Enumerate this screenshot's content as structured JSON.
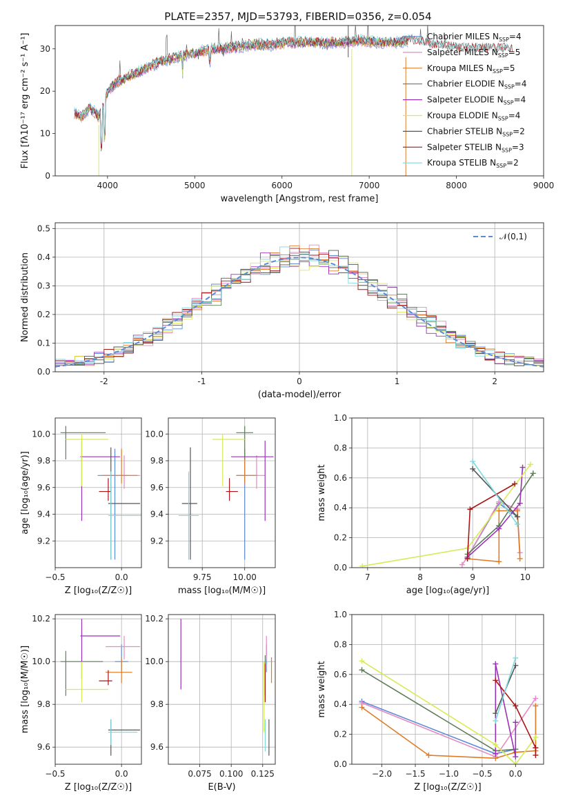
{
  "figure_title": "PLATE=2357, MJD=53793, FIBERID=0356, z=0.054",
  "models": [
    {
      "name": "Chabrier MILES",
      "nssp": "4",
      "color": "#5b8ad6"
    },
    {
      "name": "Salpeter MILES",
      "nssp": "5",
      "color": "#e58ac5"
    },
    {
      "name": "Kroupa MILES",
      "nssp": "5",
      "color": "#e07b24"
    },
    {
      "name": "Chabrier ELODIE",
      "nssp": "4",
      "color": "#5e7d5c"
    },
    {
      "name": "Salpeter ELODIE",
      "nssp": "4",
      "color": "#9b30b8"
    },
    {
      "name": "Kroupa ELODIE",
      "nssp": "4",
      "color": "#d8ea55"
    },
    {
      "name": "Chabrier STELIB",
      "nssp": "2",
      "color": "#555555"
    },
    {
      "name": "Salpeter STELIB",
      "nssp": "3",
      "color": "#aa1515"
    },
    {
      "name": "Kroupa STELIB",
      "nssp": "2",
      "color": "#7dd9e0"
    }
  ],
  "legend_nssp_prefix": "N",
  "legend_nssp_sub": "SSP",
  "legend_nssp_eq": "=",
  "chart_data": [
    {
      "id": "spectrum",
      "type": "line",
      "title": "PLATE=2357, MJD=53793, FIBERID=0356, z=0.054",
      "xlabel": "wavelength [Angstrom, rest frame]",
      "ylabel": "Flux [fλ10⁻¹⁷ erg cm⁻² s⁻¹ A⁻¹]",
      "xlim": [
        3400,
        9000
      ],
      "ylim": [
        0,
        35.5
      ],
      "xticks": [
        4000,
        5000,
        6000,
        7000,
        8000,
        9000
      ],
      "yticks": [
        0,
        10,
        20,
        30
      ],
      "continuum": [
        [
          3620,
          15
        ],
        [
          3700,
          14
        ],
        [
          3800,
          16
        ],
        [
          3900,
          14
        ],
        [
          3950,
          16
        ],
        [
          4000,
          20
        ],
        [
          4100,
          22
        ],
        [
          4200,
          23
        ],
        [
          4300,
          24
        ],
        [
          4400,
          25
        ],
        [
          4500,
          26
        ],
        [
          4600,
          27
        ],
        [
          4700,
          27.5
        ],
        [
          4800,
          28
        ],
        [
          4900,
          28.5
        ],
        [
          5000,
          29
        ],
        [
          5100,
          29.5
        ],
        [
          5200,
          30
        ],
        [
          5300,
          30
        ],
        [
          5500,
          30.5
        ],
        [
          5700,
          31
        ],
        [
          5900,
          31
        ],
        [
          6100,
          31.5
        ],
        [
          6300,
          31.5
        ],
        [
          6500,
          31.5
        ],
        [
          6700,
          31.5
        ],
        [
          6900,
          32
        ],
        [
          7100,
          31.5
        ],
        [
          7300,
          31.5
        ],
        [
          7500,
          32
        ],
        [
          7700,
          31
        ],
        [
          7900,
          30.5
        ],
        [
          8100,
          30
        ],
        [
          8300,
          30
        ],
        [
          8500,
          30
        ],
        [
          8650,
          30
        ]
      ],
      "legend": "top-right",
      "grid": false
    },
    {
      "id": "residuals",
      "type": "histogram",
      "xlabel": "(data-model)/error",
      "ylabel": "Normed distribution",
      "xlim": [
        -2.5,
        2.5
      ],
      "ylim": [
        0,
        0.52
      ],
      "xticks": [
        -2,
        -1,
        0,
        1,
        2
      ],
      "yticks": [
        0,
        0.1,
        0.2,
        0.3,
        0.4,
        0.5
      ],
      "curve_label": "𝒩(0,1)",
      "curve_color": "#5b8ad6",
      "legend": "top-right",
      "grid": true
    },
    {
      "id": "age_vs_Z",
      "type": "errorbar",
      "xlabel": "Z [log₁₀(Z/Z☉)]",
      "ylabel": "age  [log₁₀(age/yr)]",
      "xlim": [
        -0.5,
        0.15
      ],
      "ylim": [
        9.0,
        10.12
      ],
      "xticks": [
        -0.5,
        0.0
      ],
      "xticklabels": [
        "−0.5",
        "0.0"
      ],
      "yticks": [
        9.2,
        9.4,
        9.6,
        9.8,
        10.0
      ],
      "points": [
        {
          "x": -0.05,
          "y": 9.69,
          "xe": [
            0.13,
            0.1
          ],
          "ye": [
            0.63,
            0.2
          ],
          "c": "#5b8ad6"
        },
        {
          "x": 0.02,
          "y": 9.69,
          "xe": [
            0.15,
            0.12
          ],
          "ye": [
            0.1,
            0.15
          ],
          "c": "#e58ac5"
        },
        {
          "x": 0.0,
          "y": 9.69,
          "xe": [
            0.15,
            0.12
          ],
          "ye": [
            0.06,
            0.2
          ],
          "c": "#e07b24"
        },
        {
          "x": -0.42,
          "y": 10.01,
          "xe": [
            0.04,
            0.3
          ],
          "ye": [
            0.2,
            0.05
          ],
          "c": "#5e7d5c"
        },
        {
          "x": -0.3,
          "y": 9.83,
          "xe": [
            0.01,
            0.29
          ],
          "ye": [
            0.48,
            0.12
          ],
          "c": "#9b30b8"
        },
        {
          "x": -0.3,
          "y": 9.96,
          "xe": [
            0.12,
            0.2
          ],
          "ye": [
            0.35,
            0.04
          ],
          "c": "#d8ea55"
        },
        {
          "x": -0.08,
          "y": 9.48,
          "xe": [
            0.02,
            0.22
          ],
          "ye": [
            0.42,
            0.42
          ],
          "c": "#555555"
        },
        {
          "x": -0.1,
          "y": 9.57,
          "xe": [
            0.07,
            0.02
          ],
          "ye": [
            0.07,
            0.1
          ],
          "c": "#aa1515"
        },
        {
          "x": -0.08,
          "y": 9.39,
          "xe": [
            0.02,
            0.23
          ],
          "ye": [
            0.33,
            0.33
          ],
          "c": "#7dd9e0"
        }
      ],
      "grid": true
    },
    {
      "id": "age_vs_mass",
      "type": "errorbar",
      "xlabel": "mass [log₁₀(M/M☉)]",
      "xlim": [
        9.55,
        10.18
      ],
      "ylim": [
        9.0,
        10.12
      ],
      "xticks": [
        9.75,
        10.0
      ],
      "xticklabels": [
        "9.75",
        "10.00"
      ],
      "yticks": [
        9.2,
        9.4,
        9.6,
        9.8,
        10.0
      ],
      "points": [
        {
          "x": 10.0,
          "y": 9.69,
          "xe": [
            0.05,
            0.08
          ],
          "ye": [
            0.63,
            0.2
          ],
          "c": "#5b8ad6"
        },
        {
          "x": 10.07,
          "y": 9.69,
          "xe": [
            0.06,
            0.05
          ],
          "ye": [
            0.1,
            0.15
          ],
          "c": "#e58ac5"
        },
        {
          "x": 10.0,
          "y": 9.69,
          "xe": [
            0.05,
            0.07
          ],
          "ye": [
            0.06,
            0.2
          ],
          "c": "#e07b24"
        },
        {
          "x": 10.0,
          "y": 10.01,
          "xe": [
            0.05,
            0.05
          ],
          "ye": [
            0.2,
            0.05
          ],
          "c": "#5e7d5c"
        },
        {
          "x": 10.12,
          "y": 9.83,
          "xe": [
            0.2,
            0.05
          ],
          "ye": [
            0.48,
            0.12
          ],
          "c": "#9b30b8"
        },
        {
          "x": 9.87,
          "y": 9.96,
          "xe": [
            0.06,
            0.13
          ],
          "ye": [
            0.35,
            0.04
          ],
          "c": "#d8ea55"
        },
        {
          "x": 9.68,
          "y": 9.48,
          "xe": [
            0.05,
            0.04
          ],
          "ye": [
            0.42,
            0.42
          ],
          "c": "#555555"
        },
        {
          "x": 9.91,
          "y": 9.57,
          "xe": [
            0.02,
            0.05
          ],
          "ye": [
            0.07,
            0.1
          ],
          "c": "#aa1515"
        },
        {
          "x": 9.67,
          "y": 9.39,
          "xe": [
            0.06,
            0.06
          ],
          "ye": [
            0.33,
            0.33
          ],
          "c": "#7dd9e0"
        }
      ],
      "grid": true
    },
    {
      "id": "weight_vs_age",
      "type": "line",
      "xlabel": "age  [log₁₀(age/yr)]",
      "ylabel": "mass weight",
      "xlim": [
        6.7,
        10.35
      ],
      "ylim": [
        0,
        1
      ],
      "xticks": [
        7,
        8,
        9,
        10
      ],
      "yticks": [
        0,
        0.2,
        0.4,
        0.6,
        0.8,
        1.0
      ],
      "series": [
        {
          "c": "#5b8ad6",
          "x": [
            8.9,
            9.5,
            9.85
          ],
          "y": [
            0.07,
            0.43,
            0.34
          ]
        },
        {
          "c": "#e58ac5",
          "x": [
            8.8,
            8.9,
            9.5,
            9.85,
            9.9
          ],
          "y": [
            0.02,
            0.07,
            0.44,
            0.39,
            0.1
          ]
        },
        {
          "c": "#e07b24",
          "x": [
            8.9,
            9.5,
            9.5,
            9.85,
            9.9
          ],
          "y": [
            0.06,
            0.04,
            0.38,
            0.38,
            0.06
          ]
        },
        {
          "c": "#5e7d5c",
          "x": [
            8.9,
            9.5,
            10.15
          ],
          "y": [
            0.09,
            0.28,
            0.63
          ]
        },
        {
          "c": "#9b30b8",
          "x": [
            8.9,
            9.5,
            9.9,
            9.95
          ],
          "y": [
            0.07,
            0.26,
            0.43,
            0.67
          ]
        },
        {
          "c": "#d8ea55",
          "x": [
            6.9,
            8.9,
            10.1
          ],
          "y": [
            0.01,
            0.13,
            0.69
          ]
        },
        {
          "c": "#555555",
          "x": [
            9.0,
            9.85
          ],
          "y": [
            0.66,
            0.34
          ]
        },
        {
          "c": "#aa1515",
          "x": [
            8.9,
            8.95,
            9.8
          ],
          "y": [
            0.06,
            0.39,
            0.56
          ]
        },
        {
          "c": "#7dd9e0",
          "x": [
            9.0,
            9.85
          ],
          "y": [
            0.71,
            0.29
          ]
        }
      ],
      "grid": true
    },
    {
      "id": "mass_vs_Z",
      "type": "errorbar",
      "xlabel": "Z [log₁₀(Z/Z☉)]",
      "ylabel": "mass [log₁₀(M/M☉)]",
      "xlim": [
        -0.5,
        0.15
      ],
      "ylim": [
        9.52,
        10.22
      ],
      "xticks": [
        -0.5,
        0.0
      ],
      "xticklabels": [
        "−0.5",
        "0.0"
      ],
      "yticks": [
        9.6,
        9.8,
        10.0,
        10.2
      ],
      "points": [
        {
          "x": 0.0,
          "y": 10.0,
          "xe": [
            0.05,
            0.05
          ],
          "ye": [
            0.05,
            0.08
          ],
          "c": "#5b8ad6"
        },
        {
          "x": 0.02,
          "y": 10.07,
          "xe": [
            0.14,
            0.12
          ],
          "ye": [
            0.06,
            0.05
          ],
          "c": "#e58ac5"
        },
        {
          "x": 0.0,
          "y": 9.95,
          "xe": [
            0.12,
            0.08
          ],
          "ye": [
            0.05,
            0.07
          ],
          "c": "#e07b24"
        },
        {
          "x": -0.42,
          "y": 10.0,
          "xe": [
            0.04,
            0.28
          ],
          "ye": [
            0.16,
            0.05
          ],
          "c": "#5e7d5c"
        },
        {
          "x": -0.3,
          "y": 10.12,
          "xe": [
            0.01,
            0.29
          ],
          "ye": [
            0.2,
            0.08
          ],
          "c": "#9b30b8"
        },
        {
          "x": -0.3,
          "y": 9.87,
          "xe": [
            0.12,
            0.2
          ],
          "ye": [
            0.06,
            0.13
          ],
          "c": "#d8ea55"
        },
        {
          "x": -0.08,
          "y": 9.68,
          "xe": [
            0.02,
            0.22
          ],
          "ye": [
            0.12,
            0.05
          ],
          "c": "#555555"
        },
        {
          "x": -0.1,
          "y": 9.91,
          "xe": [
            0.07,
            0.03
          ],
          "ye": [
            0.02,
            0.05
          ],
          "c": "#aa1515"
        },
        {
          "x": -0.08,
          "y": 9.67,
          "xe": [
            0.02,
            0.2
          ],
          "ye": [
            0.06,
            0.06
          ],
          "c": "#7dd9e0"
        }
      ],
      "grid": true
    },
    {
      "id": "mass_vs_ebv",
      "type": "errorbar",
      "xlabel": "E(B-V)",
      "xlim": [
        0.05,
        0.135
      ],
      "ylim": [
        9.52,
        10.22
      ],
      "xticks": [
        0.075,
        0.1,
        0.125
      ],
      "xticklabels": [
        "0.075",
        "0.100",
        "0.125"
      ],
      "yticks": [
        9.6,
        9.8,
        10.0,
        10.2
      ],
      "points": [
        {
          "x": 0.128,
          "y": 10.0,
          "xe": [
            0,
            0
          ],
          "ye": [
            0.05,
            0.08
          ],
          "c": "#5b8ad6"
        },
        {
          "x": 0.128,
          "y": 10.07,
          "xe": [
            0,
            0
          ],
          "ye": [
            0.06,
            0.05
          ],
          "c": "#e58ac5"
        },
        {
          "x": 0.132,
          "y": 9.95,
          "xe": [
            0,
            0
          ],
          "ye": [
            0.05,
            0.07
          ],
          "c": "#e07b24"
        },
        {
          "x": 0.127,
          "y": 9.98,
          "xe": [
            0,
            0
          ],
          "ye": [
            0.14,
            0.05
          ],
          "c": "#5e7d5c"
        },
        {
          "x": 0.06,
          "y": 10.03,
          "xe": [
            0,
            0
          ],
          "ye": [
            0.16,
            0.17
          ],
          "c": "#9b30b8"
        },
        {
          "x": 0.126,
          "y": 9.87,
          "xe": [
            0,
            0
          ],
          "ye": [
            0.2,
            0.13
          ],
          "c": "#d8ea55"
        },
        {
          "x": 0.13,
          "y": 9.68,
          "xe": [
            0,
            0
          ],
          "ye": [
            0.12,
            0.05
          ],
          "c": "#555555"
        },
        {
          "x": 0.127,
          "y": 9.91,
          "xe": [
            0,
            0
          ],
          "ye": [
            0.1,
            0.08
          ],
          "c": "#aa1515"
        },
        {
          "x": 0.127,
          "y": 9.67,
          "xe": [
            0,
            0
          ],
          "ye": [
            0.09,
            0.06
          ],
          "c": "#7dd9e0"
        }
      ],
      "grid": true
    },
    {
      "id": "weight_vs_Z",
      "type": "line",
      "xlabel": "Z [log₁₀(Z/Z☉)]",
      "ylabel": "mass weight",
      "xlim": [
        -2.45,
        0.42
      ],
      "ylim": [
        0,
        1
      ],
      "xticks": [
        -2.0,
        -1.5,
        -1.0,
        -0.5,
        0.0
      ],
      "xticklabels": [
        "−2.0",
        "−1.5",
        "−1.0",
        "−0.5",
        "0.0"
      ],
      "yticks": [
        0,
        0.2,
        0.4,
        0.6,
        0.8,
        1.0
      ],
      "series": [
        {
          "c": "#5b8ad6",
          "x": [
            -2.3,
            -0.3,
            0.0
          ],
          "y": [
            0.42,
            0.07,
            0.1
          ]
        },
        {
          "c": "#e58ac5",
          "x": [
            -2.3,
            -0.3,
            0.3
          ],
          "y": [
            0.41,
            0.05,
            0.44
          ]
        },
        {
          "c": "#e07b24",
          "x": [
            -2.3,
            -1.3,
            -0.3,
            0.0,
            0.3,
            0.3
          ],
          "y": [
            0.38,
            0.06,
            0.04,
            0.08,
            0.09,
            0.39
          ]
        },
        {
          "c": "#5e7d5c",
          "x": [
            -2.3,
            -0.3,
            0.0
          ],
          "y": [
            0.63,
            0.09,
            0.1
          ]
        },
        {
          "c": "#9b30b8",
          "x": [
            -0.3,
            -0.3,
            0.0,
            0.0
          ],
          "y": [
            0.07,
            0.67,
            0.05,
            0.28
          ]
        },
        {
          "c": "#d8ea55",
          "x": [
            -2.3,
            -0.3,
            0.0,
            0.3
          ],
          "y": [
            0.69,
            0.13,
            0.0,
            0.18
          ]
        },
        {
          "c": "#555555",
          "x": [
            -0.3,
            0.0
          ],
          "y": [
            0.34,
            0.66
          ]
        },
        {
          "c": "#aa1515",
          "x": [
            -0.3,
            0.0,
            0.3,
            0.3
          ],
          "y": [
            0.56,
            0.39,
            0.11,
            0.06
          ]
        },
        {
          "c": "#7dd9e0",
          "x": [
            -0.3,
            0.0
          ],
          "y": [
            0.29,
            0.71
          ]
        }
      ],
      "grid": true
    }
  ]
}
